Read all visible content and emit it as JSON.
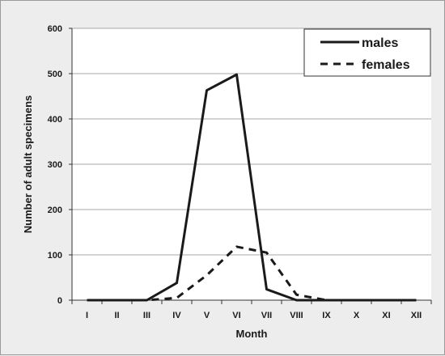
{
  "chart_data": {
    "type": "line",
    "title": "",
    "xlabel": "Month",
    "ylabel": "Number of adult specimens",
    "categories": [
      "I",
      "II",
      "III",
      "IV",
      "V",
      "VI",
      "VII",
      "VIII",
      "IX",
      "X",
      "XI",
      "XII"
    ],
    "ylim": [
      0,
      600
    ],
    "yticks": [
      0,
      100,
      200,
      300,
      400,
      500,
      600
    ],
    "grid": true,
    "legend_position": "top-right",
    "series": [
      {
        "name": "males",
        "style": "solid",
        "color": "#1a1a1a",
        "values": [
          0,
          0,
          0,
          38,
          463,
          498,
          24,
          0,
          0,
          0,
          0,
          0
        ]
      },
      {
        "name": "females",
        "style": "dashed",
        "color": "#1a1a1a",
        "values": [
          0,
          0,
          0,
          5,
          55,
          118,
          105,
          12,
          0,
          0,
          0,
          0
        ]
      }
    ]
  }
}
